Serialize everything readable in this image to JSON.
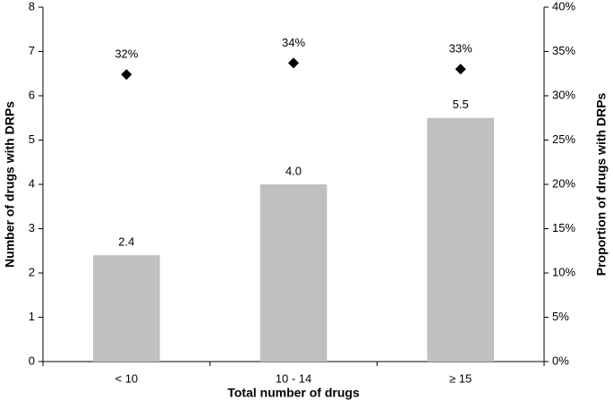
{
  "chart_data": {
    "type": "bar",
    "categories": [
      "< 10",
      "10 - 14",
      "≥ 15"
    ],
    "x_label": "Total number of drugs",
    "y_label": "Number of drugs with DRPs",
    "y2_label": "Proportion of drugs with DRPs",
    "series": [
      {
        "type": "bar",
        "color": "#c0c0c0",
        "values": [
          2.4,
          4,
          5.5
        ],
        "value_labels": [
          "2.4",
          "4.0",
          "5.5"
        ]
      },
      {
        "type": "scatter",
        "marker": "diamond",
        "axis": "y2",
        "color": "#000000",
        "values": [
          32.4,
          33.7,
          33.0
        ],
        "value_labels": [
          "32%",
          "34%",
          "33%"
        ]
      }
    ],
    "ylim": [
      0,
      8
    ],
    "yticks": [
      0,
      1,
      2,
      3,
      4,
      5,
      6,
      7,
      8
    ],
    "y2lim": [
      0,
      40
    ],
    "y2ticks": [
      {
        "value": 0,
        "label": "0%"
      },
      {
        "value": 5,
        "label": "5%"
      },
      {
        "value": 10,
        "label": "10%"
      },
      {
        "value": 15,
        "label": "15%"
      },
      {
        "value": 20,
        "label": "20%"
      },
      {
        "value": 25,
        "label": "25%"
      },
      {
        "value": 30,
        "label": "30%"
      },
      {
        "value": 35,
        "label": "35%"
      },
      {
        "value": 40,
        "label": "40%"
      }
    ],
    "grid": false
  }
}
